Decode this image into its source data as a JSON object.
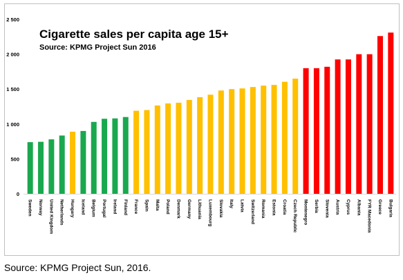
{
  "chart_data": {
    "type": "bar",
    "title": "Cigarette sales per capita age 15+",
    "subtitle": "Source: KPMG Project Sun 2016",
    "xlabel": "",
    "ylabel": "",
    "ylim": [
      0,
      2500
    ],
    "yticks": [
      "0",
      "500",
      "1 000",
      "1 500",
      "2 000",
      "2 500"
    ],
    "grid": false,
    "legend": "none",
    "categories": [
      "Sweden",
      "Norway",
      "United Kingdom",
      "Netherlands",
      "Hungary",
      "Iceland",
      "Belgium",
      "Portugal",
      "Ireland",
      "Finland",
      "France",
      "Spain",
      "Malta",
      "Poland",
      "Denmark",
      "Germany",
      "Lithuania",
      "Luxembourg",
      "Slovakia",
      "Italy",
      "Latvia",
      "Switzerland",
      "Romania",
      "Estonia",
      "Croatia",
      "Czech Republic",
      "Montenegro",
      "Serbia",
      "Slovenia",
      "Austria",
      "Cyprus",
      "Albania",
      "FYR Macedonia",
      "Greece",
      "Bulgaria"
    ],
    "values": [
      740,
      745,
      780,
      835,
      890,
      900,
      1030,
      1075,
      1080,
      1100,
      1190,
      1200,
      1265,
      1295,
      1305,
      1345,
      1385,
      1420,
      1480,
      1500,
      1510,
      1530,
      1550,
      1560,
      1605,
      1650,
      1800,
      1800,
      1820,
      1925,
      1925,
      2000,
      2000,
      2260,
      2310
    ],
    "colors": [
      "#1aa84f",
      "#1aa84f",
      "#1aa84f",
      "#1aa84f",
      "#ffc000",
      "#1aa84f",
      "#1aa84f",
      "#1aa84f",
      "#1aa84f",
      "#1aa84f",
      "#ffc000",
      "#ffc000",
      "#ffc000",
      "#ffc000",
      "#ffc000",
      "#ffc000",
      "#ffc000",
      "#ffc000",
      "#ffc000",
      "#ffc000",
      "#ffc000",
      "#ffc000",
      "#ffc000",
      "#ffc000",
      "#ffc000",
      "#ffc000",
      "#ff0000",
      "#ff0000",
      "#ff0000",
      "#ff0000",
      "#ff0000",
      "#ff0000",
      "#ff0000",
      "#ff0000",
      "#ff0000"
    ]
  },
  "footer": {
    "source": "Source: KPMG Project Sun, 2016."
  }
}
